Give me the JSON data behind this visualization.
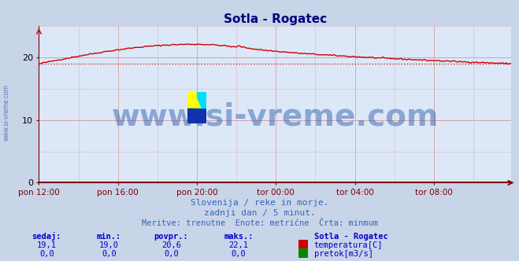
{
  "title": "Sotla - Rogatec",
  "title_color": "#000080",
  "bg_color": "#c8d4e8",
  "plot_bg_color": "#dce8f8",
  "grid_color": "#e08080",
  "axis_color": "#800000",
  "temp_line_color": "#cc0000",
  "flow_line_color": "#008800",
  "min_line_color": "#cc0000",
  "min_value": 19.0,
  "ylim": [
    0,
    25
  ],
  "yticks": [
    0,
    10,
    20
  ],
  "watermark_text": "www.si-vreme.com",
  "watermark_color": "#2255aa",
  "watermark_alpha": 0.45,
  "watermark_fontsize": 28,
  "left_text": "www.si-vreme.com",
  "left_text_color": "#2255aa",
  "subtitle1": "Slovenija / reke in morje.",
  "subtitle2": "zadnji dan / 5 minut.",
  "subtitle3": "Meritve: trenutne  Enote: metrične  Črta: minmum",
  "subtitle_color": "#3366bb",
  "footer_header_color": "#0000cc",
  "footer_val_color": "#0000cc",
  "label_sedaj": "sedaj:",
  "label_min": "min.:",
  "label_povpr": "povpr.:",
  "label_maks": "maks.:",
  "label_station": "Sotla - Rogatec",
  "val_sedaj_temp": "19,1",
  "val_min_temp": "19,0",
  "val_povpr_temp": "20,6",
  "val_maks_temp": "22,1",
  "val_sedaj_flow": "0,0",
  "val_min_flow": "0,0",
  "val_povpr_flow": "0,0",
  "val_maks_flow": "0,0",
  "label_temp": "temperatura[C]",
  "label_flow": "pretok[m3/s]",
  "temp_icon_color": "#cc0000",
  "flow_icon_color": "#008800",
  "xtick_labels": [
    "pon 12:00",
    "pon 16:00",
    "pon 20:00",
    "tor 00:00",
    "tor 04:00",
    "tor 08:00"
  ],
  "n_points": 288
}
